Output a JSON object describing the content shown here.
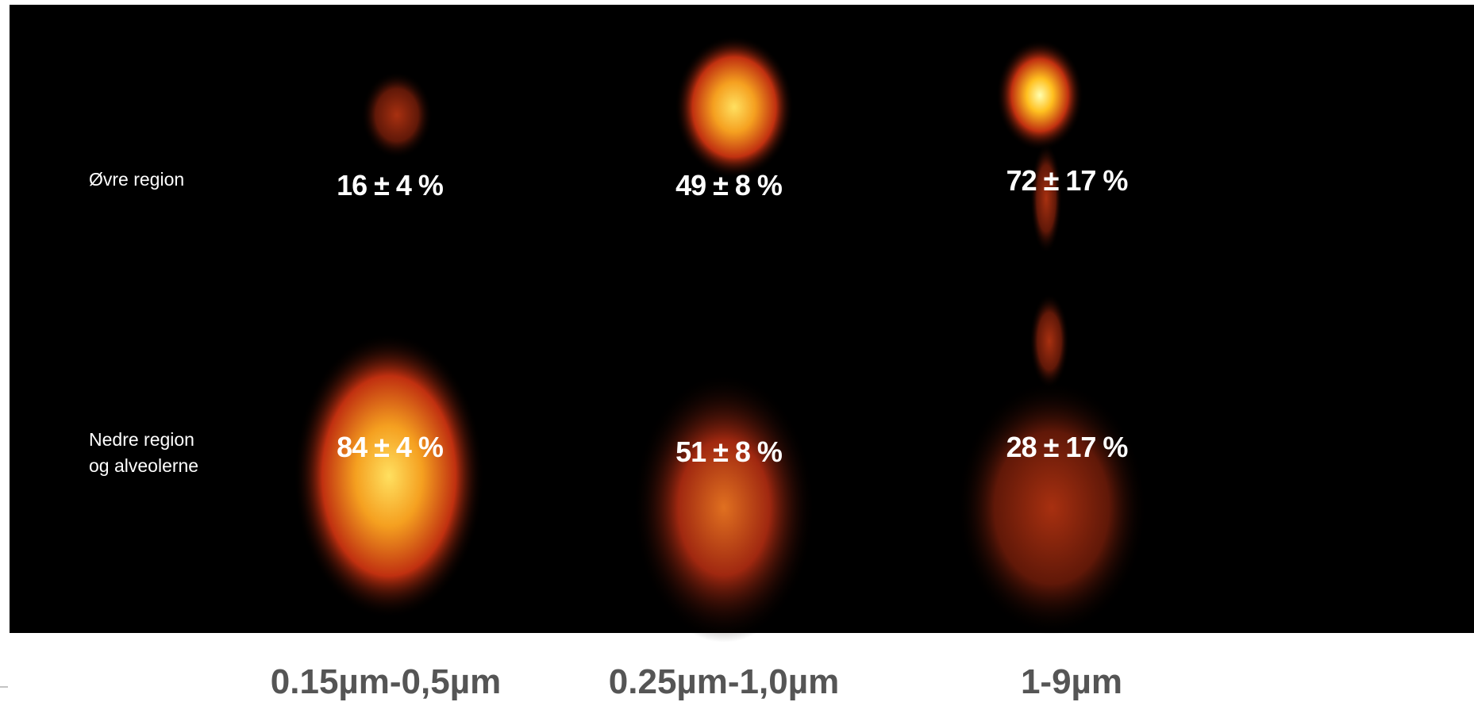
{
  "rows": [
    {
      "lines": [
        "Øvre region"
      ]
    },
    {
      "lines": [
        "Nedre region",
        "og alveolerne"
      ]
    }
  ],
  "columns": [
    {
      "size": "0.15µm-0,5µm",
      "upper": "16 ± 4 %",
      "lower": "84 ± 4 %"
    },
    {
      "size": "0.25µm-1,0µm",
      "upper": "49 ± 8 %",
      "lower": "51 ± 8 %"
    },
    {
      "size": "1-9µm",
      "upper": "72 ± 17 %",
      "lower": "28 ± 17 %"
    }
  ]
}
